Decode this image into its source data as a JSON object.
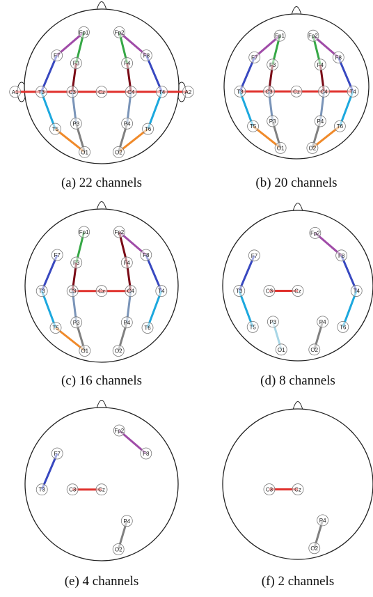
{
  "panels": [
    {
      "caption": "(a) 22 channels",
      "electrodes": [
        "Fp1",
        "Fp2",
        "F7",
        "F3",
        "F4",
        "F8",
        "A1",
        "T3",
        "C3",
        "Cz",
        "C4",
        "T4",
        "A2",
        "T5",
        "P3",
        "P4",
        "T6",
        "O1",
        "O2"
      ],
      "links": [
        {
          "from": "A1",
          "to": "A2",
          "color": "#e0302c"
        },
        {
          "from": "Fp1",
          "to": "F7",
          "color": "#a04ca8"
        },
        {
          "from": "F7",
          "to": "T3",
          "color": "#3848c0"
        },
        {
          "from": "T3",
          "to": "T5",
          "color": "#1ca8de"
        },
        {
          "from": "T5",
          "to": "O1",
          "color": "#f08a2a"
        },
        {
          "from": "Fp1",
          "to": "F3",
          "color": "#36a846"
        },
        {
          "from": "F3",
          "to": "C3",
          "color": "#7a0a16"
        },
        {
          "from": "C3",
          "to": "P3",
          "color": "#7a94b8"
        },
        {
          "from": "P3",
          "to": "O1",
          "color": "#808080"
        },
        {
          "from": "Fp2",
          "to": "F8",
          "color": "#a04ca8"
        },
        {
          "from": "F8",
          "to": "T4",
          "color": "#3848c0"
        },
        {
          "from": "T4",
          "to": "T6",
          "color": "#1ca8de"
        },
        {
          "from": "T6",
          "to": "O2",
          "color": "#f08a2a"
        },
        {
          "from": "Fp2",
          "to": "F4",
          "color": "#36a846"
        },
        {
          "from": "F4",
          "to": "C4",
          "color": "#7a0a16"
        },
        {
          "from": "C4",
          "to": "P4",
          "color": "#7a94b8"
        },
        {
          "from": "P4",
          "to": "O2",
          "color": "#808080"
        }
      ]
    },
    {
      "caption": "(b) 20 channels",
      "electrodes": [
        "Fp1",
        "Fp2",
        "F7",
        "F3",
        "F4",
        "F8",
        "T3",
        "C3",
        "Cz",
        "C4",
        "T4",
        "T5",
        "P3",
        "P4",
        "T6",
        "O1",
        "O2"
      ],
      "links": [
        {
          "from": "T3",
          "to": "T4",
          "color": "#e0302c"
        },
        {
          "from": "Fp1",
          "to": "F7",
          "color": "#a04ca8"
        },
        {
          "from": "F7",
          "to": "T3",
          "color": "#3848c0"
        },
        {
          "from": "T3",
          "to": "T5",
          "color": "#1ca8de"
        },
        {
          "from": "T5",
          "to": "O1",
          "color": "#f08a2a"
        },
        {
          "from": "Fp1",
          "to": "F3",
          "color": "#36a846"
        },
        {
          "from": "F3",
          "to": "C3",
          "color": "#7a0a16"
        },
        {
          "from": "C3",
          "to": "P3",
          "color": "#7a94b8"
        },
        {
          "from": "P3",
          "to": "O1",
          "color": "#808080"
        },
        {
          "from": "Fp2",
          "to": "F8",
          "color": "#a04ca8"
        },
        {
          "from": "F8",
          "to": "T4",
          "color": "#3848c0"
        },
        {
          "from": "T4",
          "to": "T6",
          "color": "#1ca8de"
        },
        {
          "from": "T6",
          "to": "O2",
          "color": "#f08a2a"
        },
        {
          "from": "Fp2",
          "to": "F4",
          "color": "#36a846"
        },
        {
          "from": "F4",
          "to": "C4",
          "color": "#7a0a16"
        },
        {
          "from": "C4",
          "to": "P4",
          "color": "#7a94b8"
        },
        {
          "from": "P4",
          "to": "O2",
          "color": "#808080"
        }
      ]
    },
    {
      "caption": "(c) 16 channels",
      "electrodes": [
        "Fp1",
        "Fp2",
        "F7",
        "F3",
        "F4",
        "F8",
        "T3",
        "C3",
        "Cz",
        "C4",
        "T4",
        "T5",
        "P3",
        "P4",
        "T6",
        "O1",
        "O2"
      ],
      "links": [
        {
          "from": "C3",
          "to": "C4",
          "color": "#e0302c"
        },
        {
          "from": "F7",
          "to": "T3",
          "color": "#3848c0"
        },
        {
          "from": "T3",
          "to": "T5",
          "color": "#1ca8de"
        },
        {
          "from": "T5",
          "to": "O1",
          "color": "#f08a2a"
        },
        {
          "from": "Fp1",
          "to": "F3",
          "color": "#36a846"
        },
        {
          "from": "F3",
          "to": "C3",
          "color": "#7a0a16"
        },
        {
          "from": "C3",
          "to": "P3",
          "color": "#7a94b8"
        },
        {
          "from": "P3",
          "to": "O1",
          "color": "#808080"
        },
        {
          "from": "Fp2",
          "to": "F8",
          "color": "#a04ca8"
        },
        {
          "from": "F8",
          "to": "T4",
          "color": "#3848c0"
        },
        {
          "from": "T4",
          "to": "T6",
          "color": "#1ca8de"
        },
        {
          "from": "Fp2",
          "to": "F4",
          "color": "#7a0a16"
        },
        {
          "from": "F4",
          "to": "C4",
          "color": "#7a0a16"
        },
        {
          "from": "C4",
          "to": "P4",
          "color": "#7a94b8"
        },
        {
          "from": "P4",
          "to": "O2",
          "color": "#808080"
        }
      ]
    },
    {
      "caption": "(d) 8 channels",
      "electrodes": [
        "F7",
        "T3",
        "T5",
        "C3",
        "Cz",
        "P3",
        "O1",
        "Fp2",
        "F8",
        "T4",
        "T6",
        "P4",
        "O2"
      ],
      "links": [
        {
          "from": "C3",
          "to": "Cz",
          "color": "#e0302c"
        },
        {
          "from": "F7",
          "to": "T3",
          "color": "#3848c0"
        },
        {
          "from": "T3",
          "to": "T5",
          "color": "#1ca8de"
        },
        {
          "from": "Fp2",
          "to": "F8",
          "color": "#a04ca8"
        },
        {
          "from": "F8",
          "to": "T4",
          "color": "#3848c0"
        },
        {
          "from": "T4",
          "to": "T6",
          "color": "#1ca8de"
        },
        {
          "from": "P3",
          "to": "O1",
          "color": "#a8d6e6"
        },
        {
          "from": "P4",
          "to": "O2",
          "color": "#808080"
        }
      ]
    },
    {
      "caption": "(e) 4 channels",
      "electrodes": [
        "F7",
        "T3",
        "C3",
        "Cz",
        "Fp2",
        "F8",
        "P4",
        "O2"
      ],
      "links": [
        {
          "from": "C3",
          "to": "Cz",
          "color": "#e0302c"
        },
        {
          "from": "F7",
          "to": "T3",
          "color": "#3848c0"
        },
        {
          "from": "Fp2",
          "to": "F8",
          "color": "#a04ca8"
        },
        {
          "from": "P4",
          "to": "O2",
          "color": "#808080"
        }
      ]
    },
    {
      "caption": "(f) 2 channels",
      "electrodes": [
        "C3",
        "Cz",
        "P4",
        "O2"
      ],
      "links": [
        {
          "from": "C3",
          "to": "Cz",
          "color": "#e0302c"
        },
        {
          "from": "P4",
          "to": "O2",
          "color": "#808080"
        }
      ]
    }
  ]
}
